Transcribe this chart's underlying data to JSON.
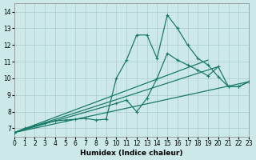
{
  "background_color": "#cce8e8",
  "grid_color": "#aacccc",
  "line_color": "#1a7a6a",
  "xlim": [
    0,
    23
  ],
  "ylim": [
    6.5,
    14.5
  ],
  "xticks": [
    0,
    1,
    2,
    3,
    4,
    5,
    6,
    7,
    8,
    9,
    10,
    11,
    12,
    13,
    14,
    15,
    16,
    17,
    18,
    19,
    20,
    21,
    22,
    23
  ],
  "yticks": [
    7,
    8,
    9,
    10,
    11,
    12,
    13,
    14
  ],
  "xlabel": "Humidex (Indice chaleur)",
  "series": [
    {
      "x": [
        0,
        1,
        2,
        3,
        4,
        5,
        6,
        7,
        8,
        9,
        10,
        11,
        12,
        13,
        14,
        15,
        16,
        17,
        18,
        19,
        20,
        21,
        22,
        23
      ],
      "y": [
        6.75,
        7.0,
        7.15,
        7.3,
        7.45,
        7.5,
        7.55,
        7.6,
        7.5,
        7.55,
        10.0,
        11.1,
        12.6,
        12.6,
        11.2,
        13.8,
        13.0,
        12.0,
        11.2,
        10.8,
        10.1,
        9.5,
        9.5,
        9.8
      ],
      "has_markers": true
    },
    {
      "x": [
        0,
        10,
        11,
        12,
        13,
        14,
        15,
        16,
        17,
        18,
        19,
        20,
        21,
        22,
        23
      ],
      "y": [
        6.75,
        8.5,
        8.7,
        8.0,
        8.8,
        10.0,
        11.5,
        11.1,
        10.8,
        10.5,
        10.15,
        10.7,
        9.5,
        9.5,
        9.8
      ],
      "has_markers": true
    },
    {
      "x": [
        0,
        23
      ],
      "y": [
        6.75,
        9.8
      ],
      "has_markers": false
    },
    {
      "x": [
        0,
        20
      ],
      "y": [
        6.75,
        10.7
      ],
      "has_markers": false
    },
    {
      "x": [
        0,
        19
      ],
      "y": [
        6.75,
        11.1
      ],
      "has_markers": false
    }
  ]
}
